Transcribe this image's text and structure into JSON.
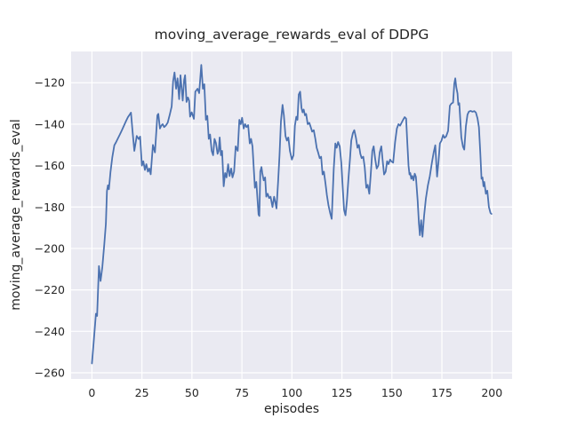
{
  "figure": {
    "background": "#ffffff"
  },
  "chart_data": {
    "type": "line",
    "title": "moving_average_rewards_eval of DDPG",
    "xlabel": "episodes",
    "ylabel": "moving_average_rewards_eval",
    "grid": true,
    "legend_position": "none",
    "style": "seaborn-darkgrid",
    "line_color": "#4c72b0",
    "panel_bg": "#eaeaf2",
    "grid_color": "#ffffff",
    "text_color": "#262626",
    "x_ticks": [
      0,
      25,
      50,
      75,
      100,
      125,
      150,
      175,
      200
    ],
    "y_ticks": [
      -120,
      -140,
      -160,
      -180,
      -200,
      -220,
      -240,
      -260
    ],
    "xlim": [
      -10.4,
      210.1
    ],
    "ylim": [
      -263.0,
      -104.9
    ],
    "x": [
      0,
      1,
      2,
      2.6,
      3.5,
      4.3,
      5.2,
      6.2,
      7,
      7.5,
      8,
      8.5,
      9.3,
      10.2,
      11.2,
      12,
      13,
      14,
      15,
      16,
      17,
      18,
      19,
      19.5,
      20.3,
      21.2,
      22.4,
      23.4,
      24.1,
      25,
      25.7,
      26.5,
      27.2,
      28,
      28.7,
      29.4,
      30.5,
      31.5,
      32.7,
      33.2,
      34,
      34.7,
      35.4,
      36.1,
      36.9,
      37.9,
      38.9,
      39.9,
      40.6,
      41.3,
      42.1,
      42.8,
      43.6,
      44.3,
      45.4,
      46.1,
      46.6,
      47.3,
      48,
      48.6,
      49.1,
      49.9,
      51,
      51.7,
      52.8,
      53.6,
      54.7,
      55.5,
      56.2,
      57,
      57.7,
      58.4,
      59.1,
      59.9,
      60.6,
      61.3,
      62,
      62.8,
      63.4,
      63.9,
      64.5,
      65.1,
      65.9,
      66.6,
      67.3,
      68.1,
      68.8,
      69.6,
      70.3,
      71.1,
      71.9,
      72.9,
      73.7,
      74.4,
      75.1,
      75.9,
      76.6,
      77.3,
      78.1,
      78.9,
      79.6,
      80.3,
      81.5,
      82.2,
      83.3,
      83.7,
      84.2,
      84.8,
      85.2,
      85.9,
      86.6,
      87.2,
      87.9,
      88.6,
      89.3,
      90.3,
      91.1,
      91.6,
      92.3,
      93.1,
      93.8,
      94.5,
      95.3,
      96,
      96.8,
      97.5,
      98.2,
      99,
      100,
      100.8,
      101.5,
      102.2,
      102.8,
      103.4,
      104.1,
      104.8,
      105.3,
      105.9,
      106.5,
      107.1,
      107.9,
      108.7,
      109.4,
      110.1,
      110.9,
      111.7,
      112.4,
      113.1,
      113.9,
      114.6,
      115.3,
      116,
      116.8,
      117.5,
      118.3,
      119.2,
      119.9,
      120.9,
      121.7,
      122.4,
      123.1,
      123.9,
      124.7,
      125.4,
      126.1,
      126.8,
      127.5,
      128.2,
      129,
      129.7,
      130.5,
      131.2,
      132,
      132.8,
      133.5,
      134.2,
      134.9,
      135.7,
      136.4,
      137.2,
      137.9,
      138.7,
      139.4,
      140.2,
      140.9,
      141.7,
      142.4,
      143.2,
      143.9,
      144.7,
      145.4,
      146.1,
      146.9,
      147.6,
      148.3,
      149.1,
      149.7,
      150.6,
      151.6,
      152.5,
      153.3,
      154.1,
      155.6,
      156.4,
      157.1,
      157.7,
      158.3,
      158.8,
      159.2,
      159.7,
      160.2,
      160.8,
      161.4,
      162,
      162.9,
      163.5,
      164,
      164.6,
      165.3,
      166.1,
      167,
      168,
      169,
      170,
      170.9,
      171.7,
      172.6,
      173.3,
      174,
      174.8,
      175.6,
      176.3,
      177.1,
      178.1,
      179,
      179.8,
      180.6,
      181.2,
      181.7,
      182.2,
      182.8,
      183.2,
      183.7,
      184.7,
      185.5,
      186.2,
      187,
      187.8,
      188.5,
      189.4,
      190.3,
      191.2,
      192,
      192.8,
      193.5,
      194.2,
      194.8,
      195.3,
      195.8,
      196.2,
      197,
      197.7,
      198.5,
      199.3,
      199.8
    ],
    "y": [
      -255.5,
      -244,
      -231.5,
      -232.6,
      -208.5,
      -215.7,
      -209,
      -198,
      -188,
      -172.3,
      -169.5,
      -171.4,
      -163,
      -156,
      -150.2,
      -148.8,
      -146.9,
      -144.9,
      -142.9,
      -140.7,
      -138.6,
      -136.6,
      -135.2,
      -134.4,
      -143.5,
      -152.9,
      -145.7,
      -147.2,
      -146,
      -160,
      -157.9,
      -162.1,
      -159.3,
      -162.9,
      -161.4,
      -164.2,
      -150,
      -153.6,
      -135.7,
      -135,
      -142.1,
      -140.7,
      -140,
      -141.4,
      -140.7,
      -139.3,
      -135.5,
      -131.4,
      -119.3,
      -115,
      -122.9,
      -117.9,
      -127.9,
      -116.4,
      -128.6,
      -118.6,
      -116.4,
      -129.3,
      -127.1,
      -128.6,
      -136.4,
      -134.3,
      -137.4,
      -124.3,
      -122.9,
      -125,
      -111.4,
      -122.9,
      -120.7,
      -137.9,
      -136,
      -147.1,
      -145,
      -152.9,
      -155,
      -147.1,
      -149.1,
      -154.3,
      -152.9,
      -146.4,
      -155,
      -152.9,
      -170,
      -163.6,
      -165.7,
      -159.3,
      -165,
      -161.4,
      -165.7,
      -162.9,
      -150.7,
      -152.9,
      -137.9,
      -140,
      -136.9,
      -142.1,
      -140,
      -141.4,
      -140.4,
      -149.3,
      -147.1,
      -150.7,
      -170.7,
      -167.9,
      -183.6,
      -184.3,
      -162.9,
      -160.7,
      -163.6,
      -167.1,
      -165.7,
      -175,
      -173.6,
      -175.7,
      -175,
      -180,
      -175,
      -177.1,
      -180.7,
      -167.9,
      -155,
      -138.6,
      -130.7,
      -135.7,
      -145.7,
      -147.9,
      -146.4,
      -152.9,
      -157.1,
      -155,
      -140.7,
      -136.4,
      -137.9,
      -125.7,
      -124.3,
      -132.1,
      -134.3,
      -132.9,
      -135.7,
      -135,
      -140,
      -139.3,
      -141.4,
      -143.6,
      -142.9,
      -147.1,
      -151.4,
      -153.6,
      -156.4,
      -155.7,
      -164.3,
      -162.9,
      -168.6,
      -174.3,
      -179.3,
      -183.2,
      -185.7,
      -161.4,
      -149.3,
      -151.4,
      -148.6,
      -150.7,
      -158.6,
      -170.7,
      -181.4,
      -184,
      -177.1,
      -167.1,
      -157.1,
      -147.9,
      -144.3,
      -142.9,
      -146.4,
      -151.4,
      -150,
      -154.3,
      -156.4,
      -155.7,
      -160.7,
      -170.7,
      -169.3,
      -173.6,
      -164.3,
      -152.9,
      -150.7,
      -157.1,
      -161.4,
      -160,
      -153.6,
      -150.7,
      -157.9,
      -164.3,
      -162.9,
      -157.9,
      -159.3,
      -157.1,
      -157.9,
      -158.6,
      -148.6,
      -142.1,
      -140,
      -140.7,
      -137.9,
      -136.6,
      -137.3,
      -148.6,
      -160,
      -164.3,
      -163.6,
      -166.4,
      -165,
      -167.1,
      -163.9,
      -165.4,
      -177.1,
      -188,
      -193.6,
      -186.4,
      -194.3,
      -184.3,
      -176,
      -169.5,
      -165,
      -158.6,
      -153.6,
      -150.2,
      -165.3,
      -158.2,
      -149.3,
      -147.9,
      -145.2,
      -146.6,
      -145.9,
      -143.2,
      -131.1,
      -130,
      -129.6,
      -120.4,
      -117.9,
      -122.1,
      -125.2,
      -130.6,
      -129.9,
      -146.4,
      -150.8,
      -152.3,
      -141.1,
      -135.4,
      -133.9,
      -133.6,
      -134,
      -133.7,
      -134.4,
      -137.2,
      -141.5,
      -153.6,
      -166.4,
      -165.7,
      -170,
      -167.9,
      -173.6,
      -172.1,
      -180,
      -182.9,
      -183.3
    ]
  }
}
